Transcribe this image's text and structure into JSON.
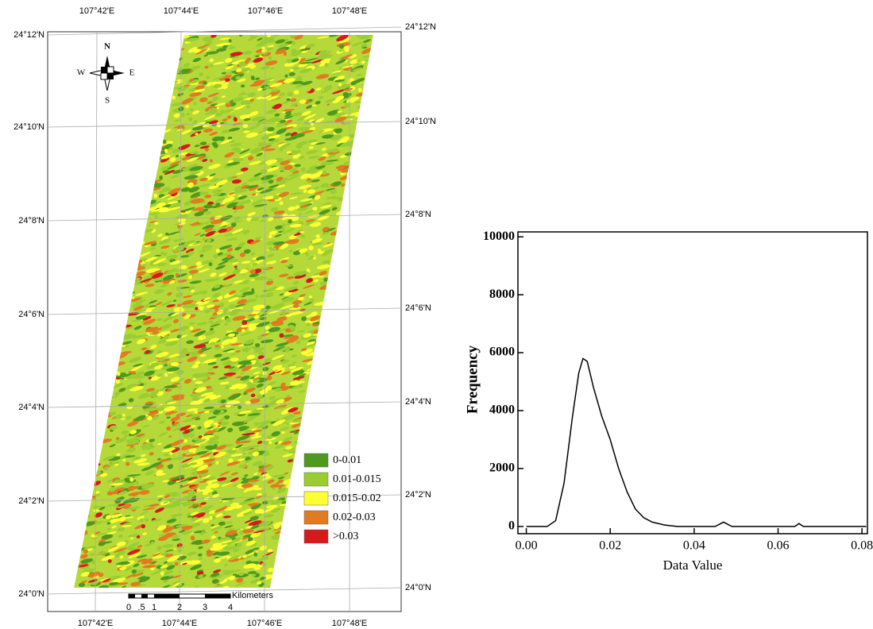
{
  "map": {
    "lat_labels_left": [
      "24°12'N",
      "24°10'N",
      "24°8'N",
      "24°6'N",
      "24°4'N",
      "24°2'N",
      "24°0'N"
    ],
    "lat_labels_right": [
      "24°12'N",
      "24°10'N",
      "24°8'N",
      "24°6'N",
      "24°4'N",
      "24°2'N",
      "24°0'N"
    ],
    "lon_labels_top": [
      "107°42'E",
      "107°44'E",
      "107°46'E",
      "107°48'E"
    ],
    "lon_labels_bottom": [
      "107°42'E",
      "107°44'E",
      "107°46'E",
      "107°48'E"
    ],
    "compass": {
      "n": "N",
      "s": "S",
      "e": "E",
      "w": "W"
    },
    "legend": [
      {
        "label": "0-0.01",
        "color": "#4e9a1e"
      },
      {
        "label": "0.01-0.015",
        "color": "#9acd32"
      },
      {
        "label": "0.015-0.02",
        "color": "#ffff33"
      },
      {
        "label": "0.02-0.03",
        "color": "#e07b20"
      },
      {
        "label": ">0.03",
        "color": "#d7191c"
      }
    ],
    "scale_bar": {
      "labels": [
        "0",
        ".5",
        "1",
        "2",
        "3",
        "4"
      ],
      "unit": "Kilometers"
    }
  },
  "chart_data": {
    "type": "line",
    "x_label": "Data Value",
    "y_label": "Frequency",
    "x": [
      0,
      0.005,
      0.007,
      0.009,
      0.011,
      0.0125,
      0.0135,
      0.0145,
      0.016,
      0.018,
      0.02,
      0.022,
      0.024,
      0.026,
      0.028,
      0.03,
      0.033,
      0.036,
      0.045,
      0.047,
      0.049,
      0.064,
      0.065,
      0.066,
      0.081
    ],
    "series": [
      {
        "color": "#000000",
        "values": [
          0,
          0,
          200,
          1500,
          3800,
          5300,
          5800,
          5700,
          4800,
          3800,
          3000,
          2000,
          1200,
          600,
          300,
          150,
          50,
          0,
          0,
          150,
          0,
          0,
          100,
          0,
          0
        ]
      }
    ],
    "xlim": [
      -0.002,
      0.0813
    ],
    "ylim": [
      -250,
      10170
    ],
    "xticks": [
      {
        "value": 0,
        "label": "0.00"
      },
      {
        "value": 0.02,
        "label": "0.02"
      },
      {
        "value": 0.04,
        "label": "0.04"
      },
      {
        "value": 0.06,
        "label": "0.06"
      },
      {
        "value": 0.08,
        "label": "0.08"
      }
    ],
    "yticks": [
      0,
      2000,
      4000,
      6000,
      8000,
      10000
    ]
  }
}
